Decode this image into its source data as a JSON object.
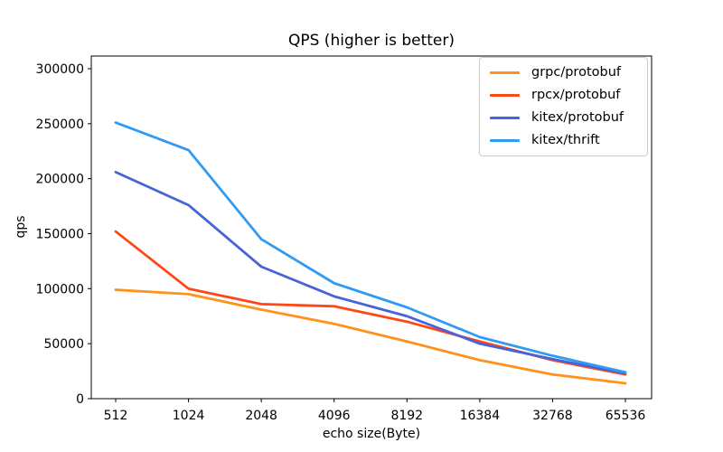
{
  "chart_data": {
    "type": "line",
    "title": "QPS (higher is better)",
    "xlabel": "echo size(Byte)",
    "ylabel": "qps",
    "categories": [
      "512",
      "1024",
      "2048",
      "4096",
      "8192",
      "16384",
      "32768",
      "65536"
    ],
    "yticks": [
      0,
      50000,
      100000,
      150000,
      200000,
      250000,
      300000
    ],
    "ylim": [
      0,
      311500
    ],
    "grid": false,
    "legend_position": "upper right",
    "series": [
      {
        "name": "grpc/protobuf",
        "color": "#ff9218",
        "values": [
          99000,
          95000,
          81000,
          68000,
          52000,
          35000,
          22000,
          14000
        ]
      },
      {
        "name": "rpcx/protobuf",
        "color": "#ff4716",
        "values": [
          152000,
          100000,
          86000,
          84000,
          70000,
          52000,
          35000,
          22000
        ]
      },
      {
        "name": "kitex/protobuf",
        "color": "#4763d8",
        "values": [
          206000,
          176000,
          120000,
          93000,
          75000,
          50000,
          36000,
          23000
        ]
      },
      {
        "name": "kitex/thrift",
        "color": "#2f9bf2",
        "values": [
          251000,
          226000,
          145000,
          105000,
          83000,
          56000,
          39000,
          24000
        ]
      }
    ]
  }
}
